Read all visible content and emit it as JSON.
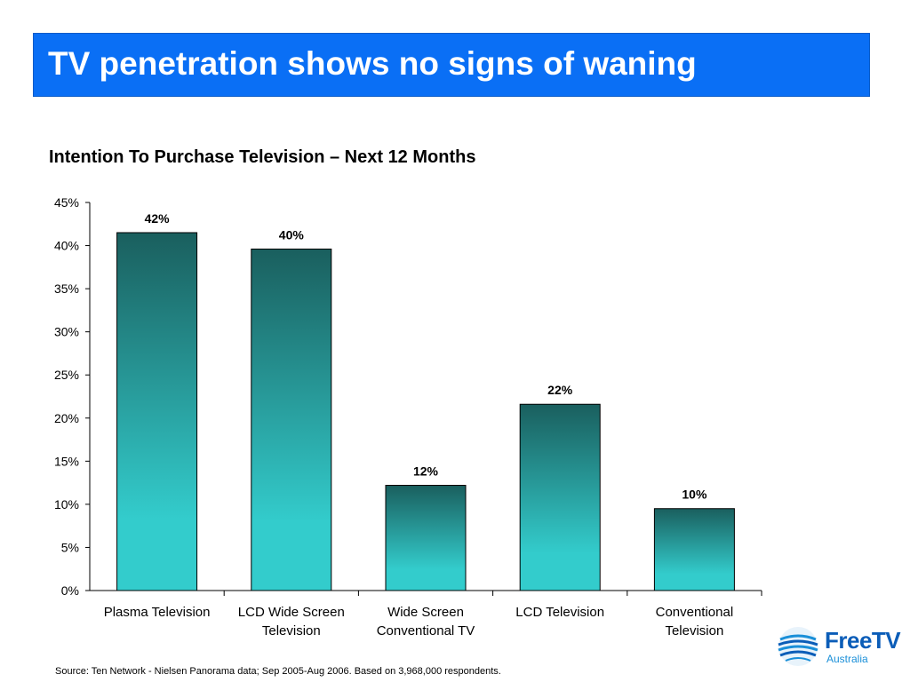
{
  "slide": {
    "title": "TV penetration shows no signs of waning",
    "source": "Source: Ten Network - Nielsen Panorama data; Sep 2005-Aug 2006. Based on 3,968,000 respondents."
  },
  "logo": {
    "name": "FreeTV",
    "subtitle": "Australia"
  },
  "colors": {
    "title_bar": "#0a6ff5",
    "bar_top": "#1a5f5e",
    "bar_bottom": "#33cccc"
  },
  "chart_data": {
    "type": "bar",
    "title": "Intention To Purchase Television – Next 12 Months",
    "categories": [
      [
        "Plasma Television"
      ],
      [
        "LCD Wide Screen",
        "Television"
      ],
      [
        "Wide Screen",
        "Conventional TV"
      ],
      [
        "LCD Television"
      ],
      [
        "Conventional",
        "Television"
      ]
    ],
    "values": [
      41.5,
      39.6,
      12.2,
      21.6,
      9.5
    ],
    "data_labels": [
      "42%",
      "40%",
      "12%",
      "22%",
      "10%"
    ],
    "ylim": [
      0,
      45
    ],
    "yticks": [
      "0%",
      "5%",
      "10%",
      "15%",
      "20%",
      "25%",
      "30%",
      "35%",
      "40%",
      "45%"
    ],
    "xlabel": "",
    "ylabel": "",
    "grid": false,
    "legend": "none"
  }
}
